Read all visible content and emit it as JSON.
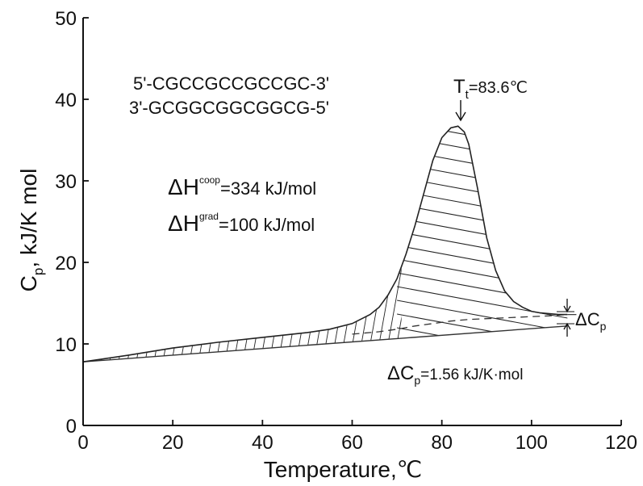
{
  "chart_data": {
    "type": "line",
    "xlabel": "Temperature,℃",
    "ylabel": "Cp, kJ/K mol",
    "xlim": [
      0,
      120
    ],
    "ylim": [
      0,
      50
    ],
    "x_ticks": [
      0,
      20,
      40,
      60,
      80,
      100,
      120
    ],
    "y_ticks": [
      0,
      10,
      20,
      30,
      40,
      50
    ],
    "grid": false,
    "series": [
      {
        "role": "excess heat capacity",
        "x": [
          0,
          10,
          20,
          30,
          40,
          50,
          55,
          60,
          64,
          66,
          68,
          70,
          72,
          74,
          76,
          78,
          80,
          82,
          83.6,
          85,
          86,
          88,
          90,
          92,
          94,
          96,
          98,
          100,
          102,
          104,
          106,
          108
        ],
        "y": [
          7.8,
          8.6,
          9.5,
          10.2,
          10.8,
          11.4,
          11.8,
          12.5,
          13.6,
          14.5,
          16,
          18,
          21,
          24.5,
          28.5,
          32.5,
          35.3,
          36.5,
          36.7,
          36,
          34.5,
          29,
          23,
          19,
          16.5,
          15.2,
          14.5,
          14,
          13.8,
          13.7,
          13.6,
          13.6
        ]
      },
      {
        "role": "folded-state baseline",
        "x": [
          0,
          108
        ],
        "y": [
          7.8,
          12.2
        ]
      },
      {
        "role": "progress baseline (dashed)",
        "x": [
          60,
          66,
          70,
          74,
          78,
          82,
          86,
          90,
          94,
          100,
          104,
          108
        ],
        "y": [
          11.2,
          11.5,
          11.8,
          12.2,
          12.5,
          12.8,
          13.0,
          13.1,
          13.2,
          13.35,
          13.45,
          13.6
        ]
      }
    ],
    "annotations": {
      "seq_top": "5'-CGCCGCCGCCGC-3'",
      "seq_bottom": "3'-GCGGCGGCGGCG-5'",
      "tt_main": "T",
      "tt_sub": "t",
      "tt_value": "=83.6℃",
      "dh_coop_main": "ΔH",
      "dh_coop_sup": "coop",
      "dh_coop_value": "=334 kJ/mol",
      "dh_grad_main": "ΔH",
      "dh_grad_sup": "grad",
      "dh_grad_value": "=100 kJ/mol",
      "dcp_side_main": "ΔC",
      "dcp_side_sub": "p",
      "dcp_bottom_main": "ΔC",
      "dcp_bottom_sub": "p",
      "dcp_bottom_value": "=1.56 kJ/K·mol"
    }
  }
}
